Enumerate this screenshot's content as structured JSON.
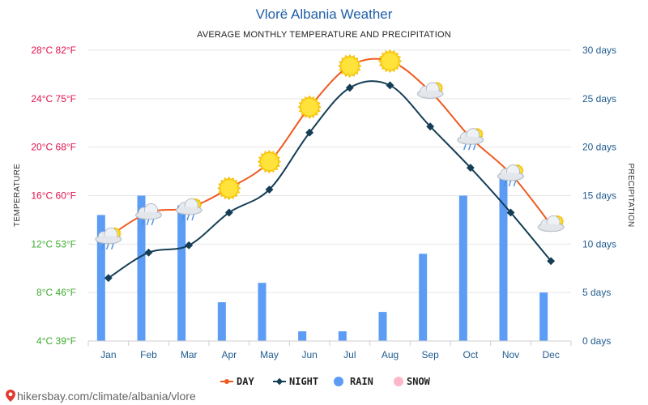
{
  "chart_data": {
    "type": "line",
    "title": "Vlorë Albania Weather",
    "subtitle": "AVERAGE MONTHLY TEMPERATURE AND PRECIPITATION",
    "categories": [
      "Jan",
      "Feb",
      "Mar",
      "Apr",
      "May",
      "Jun",
      "Jul",
      "Aug",
      "Sep",
      "Oct",
      "Nov",
      "Dec"
    ],
    "series": [
      {
        "name": "DAY",
        "type": "line",
        "axis": "temperature",
        "color": "#f05a1f",
        "values": [
          12.6,
          14.6,
          15.0,
          16.6,
          18.8,
          23.3,
          26.7,
          27.1,
          24.6,
          20.8,
          17.8,
          13.6
        ]
      },
      {
        "name": "NIGHT",
        "type": "line",
        "axis": "temperature",
        "color": "#153e56",
        "values": [
          9.2,
          11.3,
          11.9,
          14.6,
          16.5,
          21.2,
          24.9,
          25.1,
          21.7,
          18.3,
          14.6,
          10.6
        ]
      },
      {
        "name": "RAIN",
        "type": "bar",
        "axis": "precipitation",
        "unit": "days",
        "color": "#5c9cf5",
        "values": [
          13,
          15,
          14,
          4,
          6,
          1,
          1,
          3,
          9,
          15,
          17,
          5
        ]
      },
      {
        "name": "SNOW",
        "type": "bar",
        "axis": "precipitation",
        "unit": "days",
        "color": "#ffb6c8",
        "values": [
          0,
          0,
          0,
          0,
          0,
          0,
          0,
          0,
          0,
          0,
          0,
          0
        ]
      }
    ],
    "weather_icons": [
      "partly-cloudy-rain",
      "cloud-rain",
      "partly-cloudy-rain",
      "sun",
      "sun",
      "sun",
      "sun",
      "sun",
      "partly-cloudy",
      "partly-cloudy-rain",
      "partly-cloudy-rain",
      "partly-cloudy"
    ],
    "y_left": {
      "label": "TEMPERATURE",
      "range": [
        4,
        28
      ],
      "ticks": [
        {
          "value": 4,
          "label": "4°C 39°F",
          "color": "#3dab2e"
        },
        {
          "value": 8,
          "label": "8°C 46°F",
          "color": "#3dab2e"
        },
        {
          "value": 12,
          "label": "12°C 53°F",
          "color": "#3dab2e"
        },
        {
          "value": 16,
          "label": "16°C 60°F",
          "color": "#e0104a"
        },
        {
          "value": 20,
          "label": "20°C 68°F",
          "color": "#e0104a"
        },
        {
          "value": 24,
          "label": "24°C 75°F",
          "color": "#e0104a"
        },
        {
          "value": 28,
          "label": "28°C 82°F",
          "color": "#e0104a"
        }
      ]
    },
    "y_right": {
      "label": "PRECIPITATION",
      "range": [
        0,
        30
      ],
      "ticks": [
        {
          "value": 0,
          "label": "0 days"
        },
        {
          "value": 5,
          "label": "5 days"
        },
        {
          "value": 10,
          "label": "10 days"
        },
        {
          "value": 15,
          "label": "15 days"
        },
        {
          "value": 20,
          "label": "20 days"
        },
        {
          "value": 25,
          "label": "25 days"
        },
        {
          "value": 30,
          "label": "30 days"
        }
      ]
    },
    "grid": true,
    "legend_position": "bottom-center",
    "source": "hikersbay.com/climate/albania/vlore"
  }
}
